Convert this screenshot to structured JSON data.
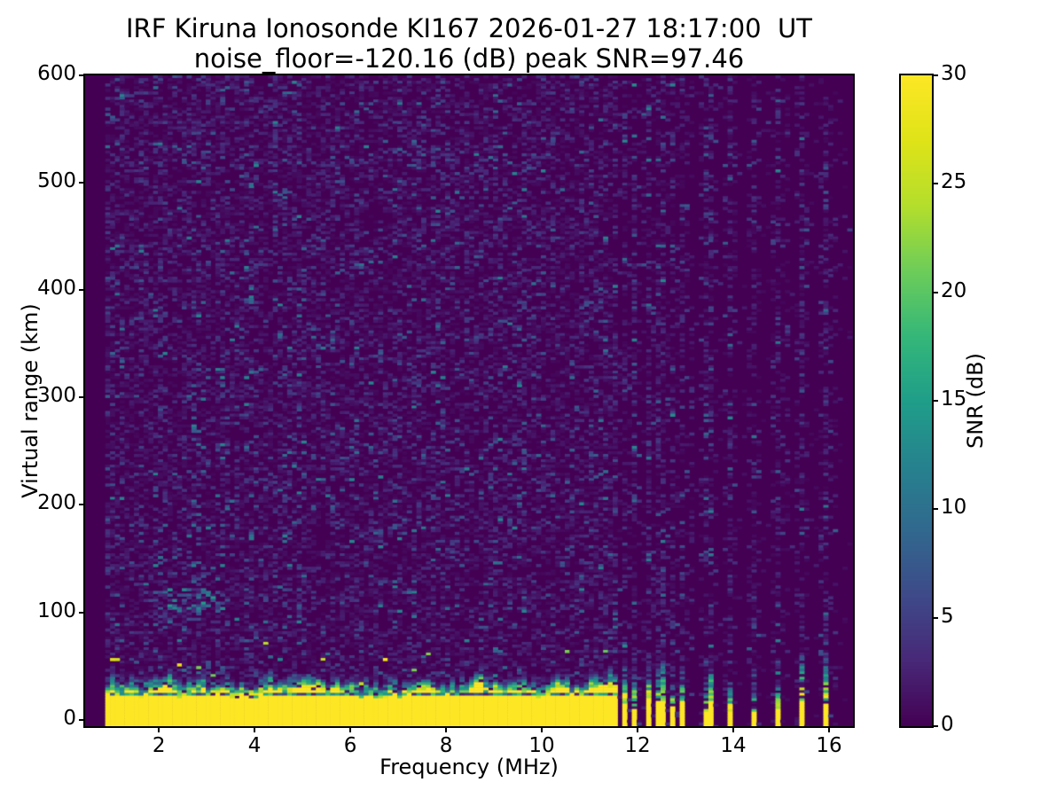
{
  "chart_data": {
    "type": "heatmap",
    "title_line1": "IRF Kiruna Ionosonde KI167 2026-01-27 18:17:00  UT",
    "title_line2": "noise_floor=-120.16 (dB) peak SNR=97.46",
    "xlabel": "Frequency (MHz)",
    "ylabel": "Virtual range (km)",
    "colorbar_label": "SNR (dB)",
    "station": "IRF Kiruna Ionosonde KI167",
    "timestamp": "2026-01-27 18:17:00 UT",
    "noise_floor_db": -120.16,
    "peak_snr_db": 97.46,
    "xlim": [
      0.46,
      16.5
    ],
    "ylim": [
      -6,
      600
    ],
    "clim": [
      0,
      30
    ],
    "xticks": [
      2,
      4,
      6,
      8,
      10,
      12,
      14,
      16
    ],
    "yticks": [
      0,
      100,
      200,
      300,
      400,
      500,
      600
    ],
    "colorbar_ticks": [
      0,
      5,
      10,
      15,
      20,
      25,
      30
    ],
    "colormap": "viridis",
    "colormap_stops": [
      "#440154",
      "#482878",
      "#3e4a89",
      "#31688e",
      "#26828e",
      "#1f9e89",
      "#35b779",
      "#6dcd59",
      "#b4de2c",
      "#dfe318",
      "#fde725"
    ],
    "background_color": "#440154",
    "peak_color": "#fde725",
    "ground_clutter": {
      "band_max_freq_mhz": 11.62,
      "typical_top_km": 27,
      "transition_thickness_km": 16,
      "snr_db": 30
    },
    "blanking_line_km": 23.5,
    "echo_region": {
      "freq_mhz": [
        2.05,
        3.35
      ],
      "range_km": [
        100,
        123
      ],
      "snr_db": 12
    },
    "rfi_stripes_mhz": [
      11.72,
      11.96,
      12.2,
      12.39,
      12.57,
      12.76,
      12.96,
      13.48,
      13.9,
      14.44,
      14.96,
      15.44,
      15.97
    ],
    "render": {
      "seed": 16717,
      "freq_start_mhz": 0.93,
      "freq_step_mhz": 0.1,
      "range_step_km": 2.5,
      "noise_mean_db": 1.9,
      "noise_speckle_probability": 0.55
    }
  }
}
